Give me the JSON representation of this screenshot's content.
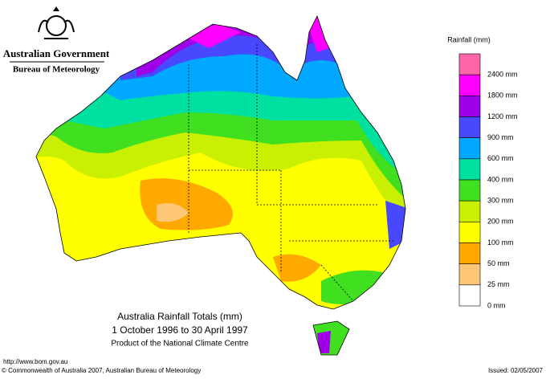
{
  "header": {
    "government": "Australian Government",
    "bureau": "Bureau of Meteorology"
  },
  "map": {
    "title": "Australia Rainfall Totals (mm)",
    "period": "1 October 1996 to 30 April 1997",
    "producer": "Product of the National Climate Centre"
  },
  "legend": {
    "title": "Rainfall (mm)",
    "items": [
      {
        "label": "2400 mm",
        "color": "#ff66aa"
      },
      {
        "label": "1800 mm",
        "color": "#ff00ff"
      },
      {
        "label": "1200 mm",
        "color": "#a000e8"
      },
      {
        "label": "900 mm",
        "color": "#4848ff"
      },
      {
        "label": "600 mm",
        "color": "#00a8ff"
      },
      {
        "label": "400 mm",
        "color": "#00e0a0"
      },
      {
        "label": "300 mm",
        "color": "#40e020"
      },
      {
        "label": "200 mm",
        "color": "#c8f000"
      },
      {
        "label": "100 mm",
        "color": "#ffff00"
      },
      {
        "label": "50 mm",
        "color": "#ffa800"
      },
      {
        "label": "25 mm",
        "color": "#ffc878"
      },
      {
        "label": "0 mm",
        "color": "#ffffff"
      }
    ]
  },
  "footer": {
    "url": "http://www.bom.gov.au",
    "copyright": "© Commonwealth of Australia 2007, Australian Bureau of Meteorology",
    "issued": "Issued: 02/05/2007"
  }
}
